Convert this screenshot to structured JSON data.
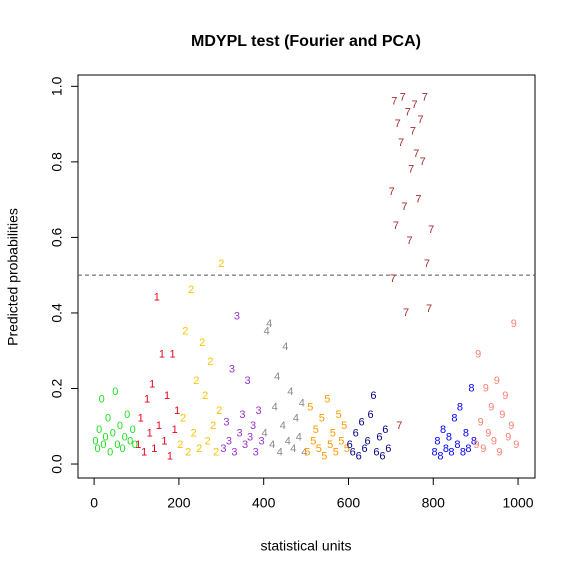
{
  "chart_data": {
    "type": "scatter",
    "title": "MDYPL test (Fourier and PCA)",
    "x_label": "statistical units",
    "y_label": "Predicted probabilities",
    "xlim": [
      -38,
      1040
    ],
    "ylim": [
      -0.037,
      1.03
    ],
    "xticks": [
      0,
      200,
      400,
      600,
      800,
      1000
    ],
    "yticks": [
      {
        "value": 0,
        "label": "0.0"
      },
      0.2,
      0.4,
      0.6,
      0.8,
      {
        "value": 1,
        "label": "1.0"
      }
    ],
    "hline": 0.5,
    "series": [
      {
        "name": "0",
        "color": "#22dd22",
        "x": [
          3,
          8,
          12,
          18,
          22,
          27,
          33,
          38,
          44,
          50,
          55,
          61,
          67,
          72,
          78,
          85,
          91,
          96
        ],
        "values": [
          0.06,
          0.04,
          0.09,
          0.17,
          0.05,
          0.07,
          0.12,
          0.03,
          0.08,
          0.19,
          0.05,
          0.1,
          0.04,
          0.07,
          0.13,
          0.06,
          0.09,
          0.05
        ]
      },
      {
        "name": "1",
        "color": "#e8001c",
        "x": [
          104,
          110,
          118,
          125,
          131,
          137,
          142,
          148,
          153,
          160,
          166,
          172,
          179,
          185,
          190,
          196
        ],
        "values": [
          0.05,
          0.12,
          0.03,
          0.17,
          0.08,
          0.21,
          0.04,
          0.44,
          0.1,
          0.29,
          0.06,
          0.18,
          0.02,
          0.29,
          0.09,
          0.14
        ]
      },
      {
        "name": "2",
        "color": "#f5c400",
        "x": [
          203,
          210,
          215,
          222,
          229,
          235,
          241,
          248,
          255,
          262,
          268,
          274,
          281,
          288,
          295,
          300
        ],
        "values": [
          0.05,
          0.12,
          0.35,
          0.03,
          0.46,
          0.08,
          0.22,
          0.04,
          0.32,
          0.18,
          0.06,
          0.27,
          0.1,
          0.03,
          0.14,
          0.53
        ]
      },
      {
        "name": "3",
        "color": "#9932cc",
        "x": [
          305,
          312,
          318,
          325,
          331,
          337,
          343,
          350,
          356,
          362,
          368,
          375,
          381,
          388,
          395
        ],
        "values": [
          0.04,
          0.11,
          0.06,
          0.25,
          0.03,
          0.39,
          0.08,
          0.13,
          0.05,
          0.22,
          0.07,
          0.1,
          0.03,
          0.14,
          0.06
        ]
      },
      {
        "name": "4",
        "color": "#888888",
        "x": [
          402,
          407,
          413,
          420,
          426,
          432,
          438,
          445,
          451,
          457,
          463,
          470,
          476,
          483,
          490,
          496
        ],
        "values": [
          0.08,
          0.35,
          0.37,
          0.05,
          0.15,
          0.23,
          0.03,
          0.1,
          0.31,
          0.06,
          0.19,
          0.04,
          0.12,
          0.07,
          0.16,
          0.03
        ]
      },
      {
        "name": "5",
        "color": "#ff9900",
        "x": [
          503,
          510,
          517,
          523,
          530,
          537,
          543,
          550,
          557,
          563,
          570,
          577,
          583,
          590,
          596
        ],
        "values": [
          0.03,
          0.15,
          0.06,
          0.09,
          0.04,
          0.12,
          0.02,
          0.17,
          0.05,
          0.08,
          0.03,
          0.13,
          0.06,
          0.1,
          0.04
        ]
      },
      {
        "name": "6",
        "color": "#000080",
        "x": [
          603,
          610,
          617,
          624,
          631,
          638,
          645,
          652,
          659,
          666,
          673,
          680,
          687,
          694
        ],
        "values": [
          0.05,
          0.03,
          0.08,
          0.02,
          0.11,
          0.04,
          0.06,
          0.13,
          0.18,
          0.03,
          0.07,
          0.02,
          0.09,
          0.04
        ]
      },
      {
        "name": "7",
        "color": "#a52a2a",
        "x": [
          702,
          705,
          708,
          712,
          716,
          720,
          724,
          728,
          732,
          736,
          740,
          744,
          748,
          752,
          756,
          760,
          765,
          770,
          775,
          780,
          785,
          790,
          795
        ],
        "values": [
          0.72,
          0.49,
          0.96,
          0.63,
          0.9,
          0.1,
          0.85,
          0.97,
          0.68,
          0.4,
          0.93,
          0.59,
          0.78,
          0.88,
          0.95,
          0.82,
          0.7,
          0.91,
          0.8,
          0.97,
          0.53,
          0.41,
          0.62
        ]
      },
      {
        "name": "8",
        "color": "#0000ff",
        "x": [
          803,
          810,
          817,
          823,
          830,
          837,
          843,
          850,
          857,
          863,
          870,
          877,
          883,
          890,
          896
        ],
        "values": [
          0.03,
          0.06,
          0.02,
          0.09,
          0.04,
          0.07,
          0.03,
          0.12,
          0.05,
          0.15,
          0.03,
          0.08,
          0.04,
          0.2,
          0.06
        ]
      },
      {
        "name": "9",
        "color": "#fa8072",
        "x": [
          902,
          906,
          912,
          918,
          924,
          930,
          937,
          943,
          950,
          956,
          963,
          970,
          977,
          984,
          990,
          996
        ],
        "values": [
          0.05,
          0.29,
          0.11,
          0.04,
          0.2,
          0.08,
          0.15,
          0.06,
          0.22,
          0.03,
          0.13,
          0.18,
          0.07,
          0.1,
          0.37,
          0.05
        ]
      }
    ]
  }
}
